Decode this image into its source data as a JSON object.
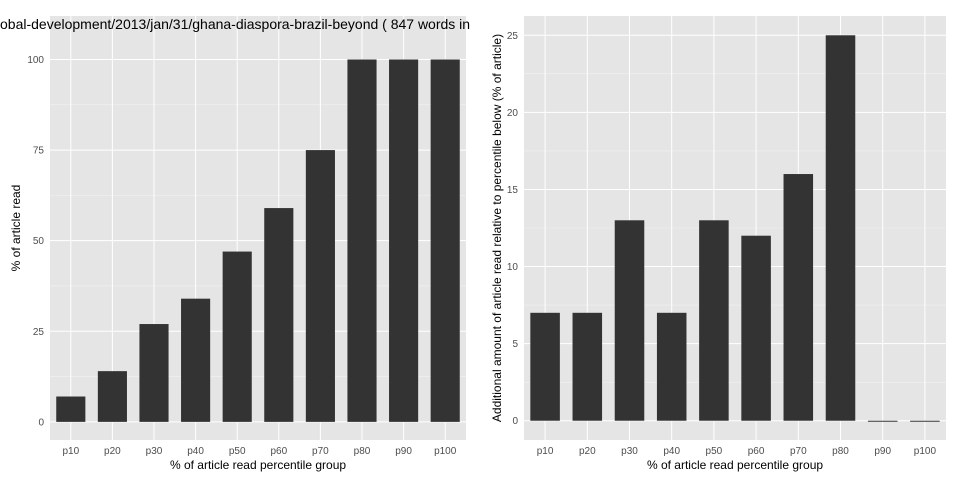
{
  "chart_data": [
    {
      "type": "bar",
      "title": "obal-development/2013/jan/31/ghana-diaspora-brazil-beyond ( 847 words in",
      "categories": [
        "p10",
        "p20",
        "p30",
        "p40",
        "p50",
        "p60",
        "p70",
        "p80",
        "p90",
        "p100"
      ],
      "values": [
        7,
        14,
        27,
        34,
        47,
        59,
        75,
        100,
        100,
        100
      ],
      "xlabel": "% of article read percentile group",
      "ylabel": "% of article read",
      "ylim": [
        -5,
        112
      ],
      "yticks": [
        0,
        25,
        50,
        75,
        100
      ],
      "grid": true,
      "legend": "none"
    },
    {
      "type": "bar",
      "title": "",
      "categories": [
        "p10",
        "p20",
        "p30",
        "p40",
        "p50",
        "p60",
        "p70",
        "p80",
        "p90",
        "p100"
      ],
      "values": [
        7,
        7,
        13,
        7,
        13,
        12,
        16,
        25,
        0,
        0
      ],
      "xlabel": "% of article read percentile group",
      "ylabel": "Additional amount of article read relative to percentile below (% of article)",
      "ylim": [
        -1.25,
        26.25
      ],
      "yticks": [
        0,
        5,
        10,
        15,
        20,
        25
      ],
      "grid": true,
      "legend": "none"
    }
  ],
  "colors": {
    "panel_background": "#e5e5e5",
    "grid_major": "#ffffff",
    "bar_fill": "#333333",
    "tick_text": "#4d4d4d"
  }
}
